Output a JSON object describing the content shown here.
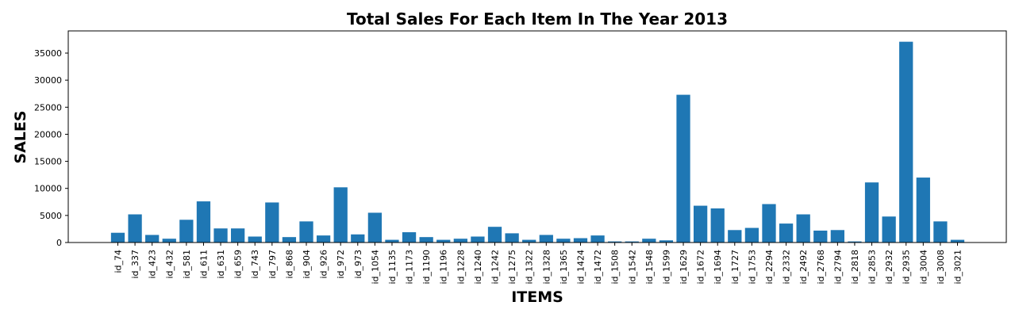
{
  "chart_data": {
    "type": "bar",
    "title": "Total Sales For Each Item In The Year 2013",
    "xlabel": "ITEMS",
    "ylabel": "SALES",
    "ylim": [
      0,
      39100
    ],
    "yticks": [
      0,
      5000,
      10000,
      15000,
      20000,
      25000,
      30000,
      35000
    ],
    "grid": false,
    "bar_color": "#1f77b4",
    "categories": [
      "id_74",
      "id_337",
      "id_423",
      "id_432",
      "id_581",
      "id_611",
      "id_631",
      "id_659",
      "id_743",
      "id_797",
      "id_868",
      "id_904",
      "id_926",
      "id_972",
      "id_973",
      "id_1054",
      "id_1135",
      "id_1173",
      "id_1190",
      "id_1196",
      "id_1228",
      "id_1240",
      "id_1242",
      "id_1275",
      "id_1322",
      "id_1328",
      "id_1365",
      "id_1424",
      "id_1472",
      "id_1508",
      "id_1542",
      "id_1548",
      "id_1599",
      "id_1629",
      "id_1672",
      "id_1694",
      "id_1727",
      "id_1753",
      "id_2294",
      "id_2332",
      "id_2492",
      "id_2768",
      "id_2794",
      "id_2818",
      "id_2853",
      "id_2932",
      "id_2935",
      "id_3004",
      "id_3008",
      "id_3021"
    ],
    "values": [
      1800,
      5200,
      1400,
      700,
      4200,
      7600,
      2600,
      2600,
      1100,
      7400,
      1000,
      3900,
      1300,
      10200,
      1500,
      5500,
      500,
      1900,
      1000,
      500,
      700,
      1100,
      2900,
      1700,
      500,
      1400,
      700,
      800,
      1300,
      200,
      200,
      700,
      400,
      27300,
      6800,
      6300,
      2300,
      2700,
      7100,
      3500,
      5200,
      2200,
      2300,
      200,
      11100,
      4800,
      37100,
      12000,
      3900,
      500
    ]
  }
}
